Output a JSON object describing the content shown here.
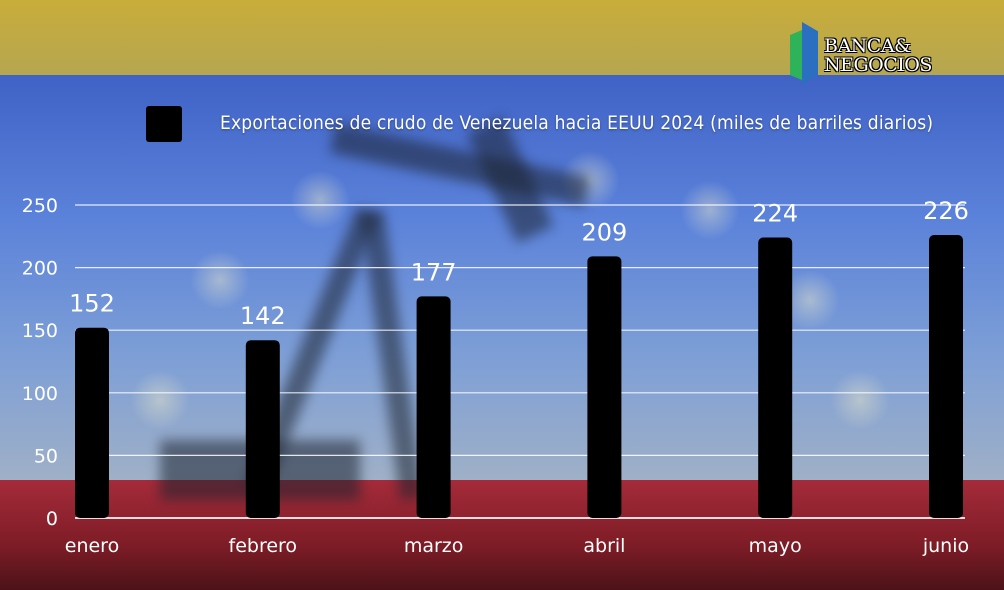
{
  "logo": {
    "line1": "BANCA&",
    "line2": "NEGOCIOS"
  },
  "chart_data": {
    "type": "bar",
    "series": [
      {
        "name": "Exportaciones de crudo de Venezuela hacia EEUU 2024 (miles de barriles diarios)",
        "values": [
          152,
          142,
          177,
          209,
          224,
          226
        ]
      }
    ],
    "categories": [
      "enero",
      "febrero",
      "marzo",
      "abril",
      "mayo",
      "junio"
    ],
    "values": [
      152,
      142,
      177,
      209,
      224,
      226
    ],
    "yticks": [
      0,
      50,
      100,
      150,
      200,
      250
    ],
    "ylim": [
      0,
      250
    ],
    "grid": true,
    "legend": "top",
    "bar_color": "#000000"
  },
  "colors": {
    "flag_yellow": "#c9ad3a",
    "flag_blue": "#4d72d2",
    "flag_red": "#a52b3a"
  }
}
